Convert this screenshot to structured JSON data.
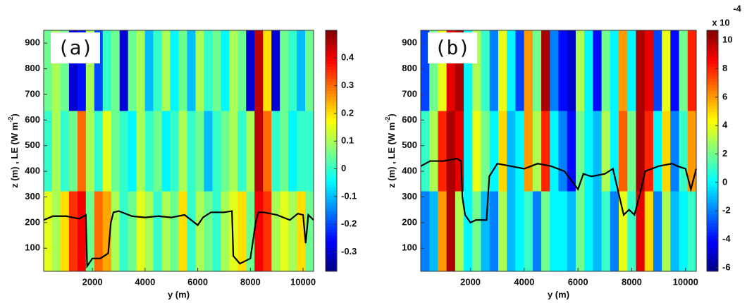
{
  "chart_data": [
    {
      "type": "heatmap",
      "panel_label": "(a)",
      "xlabel": "y (m)",
      "ylabel": "z (m) , LE (W m",
      "ylabel_sup": "-2",
      "ylabel_end": ")",
      "xlim": [
        150,
        10400
      ],
      "ylim": [
        10,
        950
      ],
      "clim": [
        -0.37,
        0.5
      ],
      "xticks": [
        2000,
        4000,
        6000,
        8000,
        10000
      ],
      "yticks": [
        100,
        200,
        300,
        400,
        500,
        600,
        700,
        800,
        900
      ],
      "cticks": [
        -0.3,
        -0.2,
        -0.1,
        0,
        0.1,
        0.2,
        0.3,
        0.4
      ],
      "heatmap": [
        [
          0.15,
          0.1,
          0.2,
          0.35,
          0.4,
          0.05,
          0.3,
          0.25,
          0.1,
          0,
          0.05,
          0.15,
          0.1,
          0,
          0.1,
          0.05,
          0.2,
          0,
          0.1,
          0.05,
          0,
          0.1,
          0.15,
          0.2,
          0.05,
          0.4,
          0.35,
          0.1,
          0.15,
          0.1,
          0.2,
          0.05
        ],
        [
          0,
          0.1,
          0,
          0.05,
          0.3,
          0.1,
          0,
          0.15,
          0.05,
          0,
          -0.05,
          0.1,
          0,
          0.05,
          -0.05,
          0,
          0.1,
          0,
          0.05,
          -0.1,
          0,
          0.05,
          0.1,
          0,
          0.1,
          0.45,
          0.3,
          0,
          0.05,
          -0.05,
          0,
          0
        ],
        [
          0.05,
          0.1,
          0.05,
          -0.3,
          -0.25,
          0.1,
          -0.2,
          0,
          0.05,
          -0.3,
          0.05,
          0.1,
          -0.1,
          0,
          0.1,
          -0.05,
          0.05,
          -0.1,
          0.1,
          0,
          0.05,
          -0.05,
          0.1,
          0.05,
          -0.3,
          0.45,
          0.2,
          -0.3,
          0.05,
          0,
          -0.1,
          0.05
        ]
      ],
      "line": {
        "color": "#000000",
        "x": [
          150,
          500,
          1000,
          1500,
          1750,
          1800,
          2000,
          2300,
          2600,
          2700,
          2800,
          3000,
          3500,
          4000,
          4500,
          5000,
          5500,
          6000,
          6200,
          6500,
          7000,
          7300,
          7350,
          7600,
          7800,
          8000,
          8200,
          8300,
          8500,
          9000,
          9500,
          9800,
          10000,
          10100,
          10200,
          10400
        ],
        "values": [
          210,
          225,
          225,
          215,
          230,
          30,
          60,
          60,
          80,
          200,
          240,
          245,
          225,
          220,
          225,
          220,
          230,
          190,
          220,
          240,
          240,
          245,
          70,
          40,
          50,
          60,
          200,
          240,
          240,
          230,
          210,
          235,
          230,
          120,
          230,
          210
        ]
      }
    },
    {
      "type": "heatmap",
      "panel_label": "(b)",
      "xlabel": "y (m)",
      "ylabel": "z (m) , LE (W m",
      "ylabel_sup": "-2",
      "ylabel_end": ")",
      "colorbar_multiplier": "x 10",
      "colorbar_exponent": "-4",
      "xlim": [
        150,
        10400
      ],
      "ylim": [
        10,
        950
      ],
      "clim": [
        -6.25,
        10.7
      ],
      "xticks": [
        2000,
        4000,
        6000,
        8000,
        10000
      ],
      "yticks": [
        100,
        200,
        300,
        400,
        500,
        600,
        700,
        800,
        900
      ],
      "cticks": [
        -6,
        -4,
        -2,
        0,
        2,
        4,
        6,
        8,
        10
      ],
      "heatmap": [
        [
          -2,
          -1,
          6,
          10,
          3,
          0,
          2,
          -1,
          -2,
          3,
          -1,
          0,
          1,
          -2,
          2,
          0,
          0,
          -1,
          2,
          0,
          -1,
          1,
          -2,
          4,
          1,
          9,
          5,
          -2,
          3,
          -1,
          0,
          1
        ],
        [
          1,
          3,
          8,
          10,
          9,
          0,
          4,
          2,
          0,
          5,
          -1,
          0,
          6,
          3,
          8,
          0,
          -2,
          -4,
          2,
          0,
          -1,
          3,
          0,
          7,
          2,
          10,
          8,
          0,
          5,
          -2,
          1,
          6
        ],
        [
          -3,
          2,
          4,
          9,
          10,
          0,
          3,
          1,
          -2,
          4,
          0,
          -3,
          6,
          2,
          10,
          -2,
          -4,
          -5,
          3,
          0,
          -4,
          2,
          0,
          6,
          0,
          10,
          9,
          -3,
          4,
          -4,
          2,
          8
        ]
      ],
      "line": {
        "color": "#000000",
        "x": [
          150,
          500,
          1000,
          1500,
          1650,
          1700,
          1800,
          2000,
          2200,
          2600,
          2700,
          3000,
          3500,
          4000,
          4500,
          5000,
          5500,
          6000,
          6200,
          6500,
          7000,
          7300,
          7500,
          7700,
          7900,
          8100,
          8300,
          8500,
          9000,
          9500,
          9700,
          10000,
          10200,
          10400
        ],
        "values": [
          420,
          440,
          440,
          450,
          440,
          300,
          230,
          200,
          210,
          210,
          380,
          430,
          420,
          410,
          430,
          420,
          400,
          330,
          390,
          380,
          390,
          410,
          320,
          230,
          250,
          230,
          310,
          400,
          420,
          430,
          420,
          410,
          330,
          410
        ]
      }
    }
  ]
}
